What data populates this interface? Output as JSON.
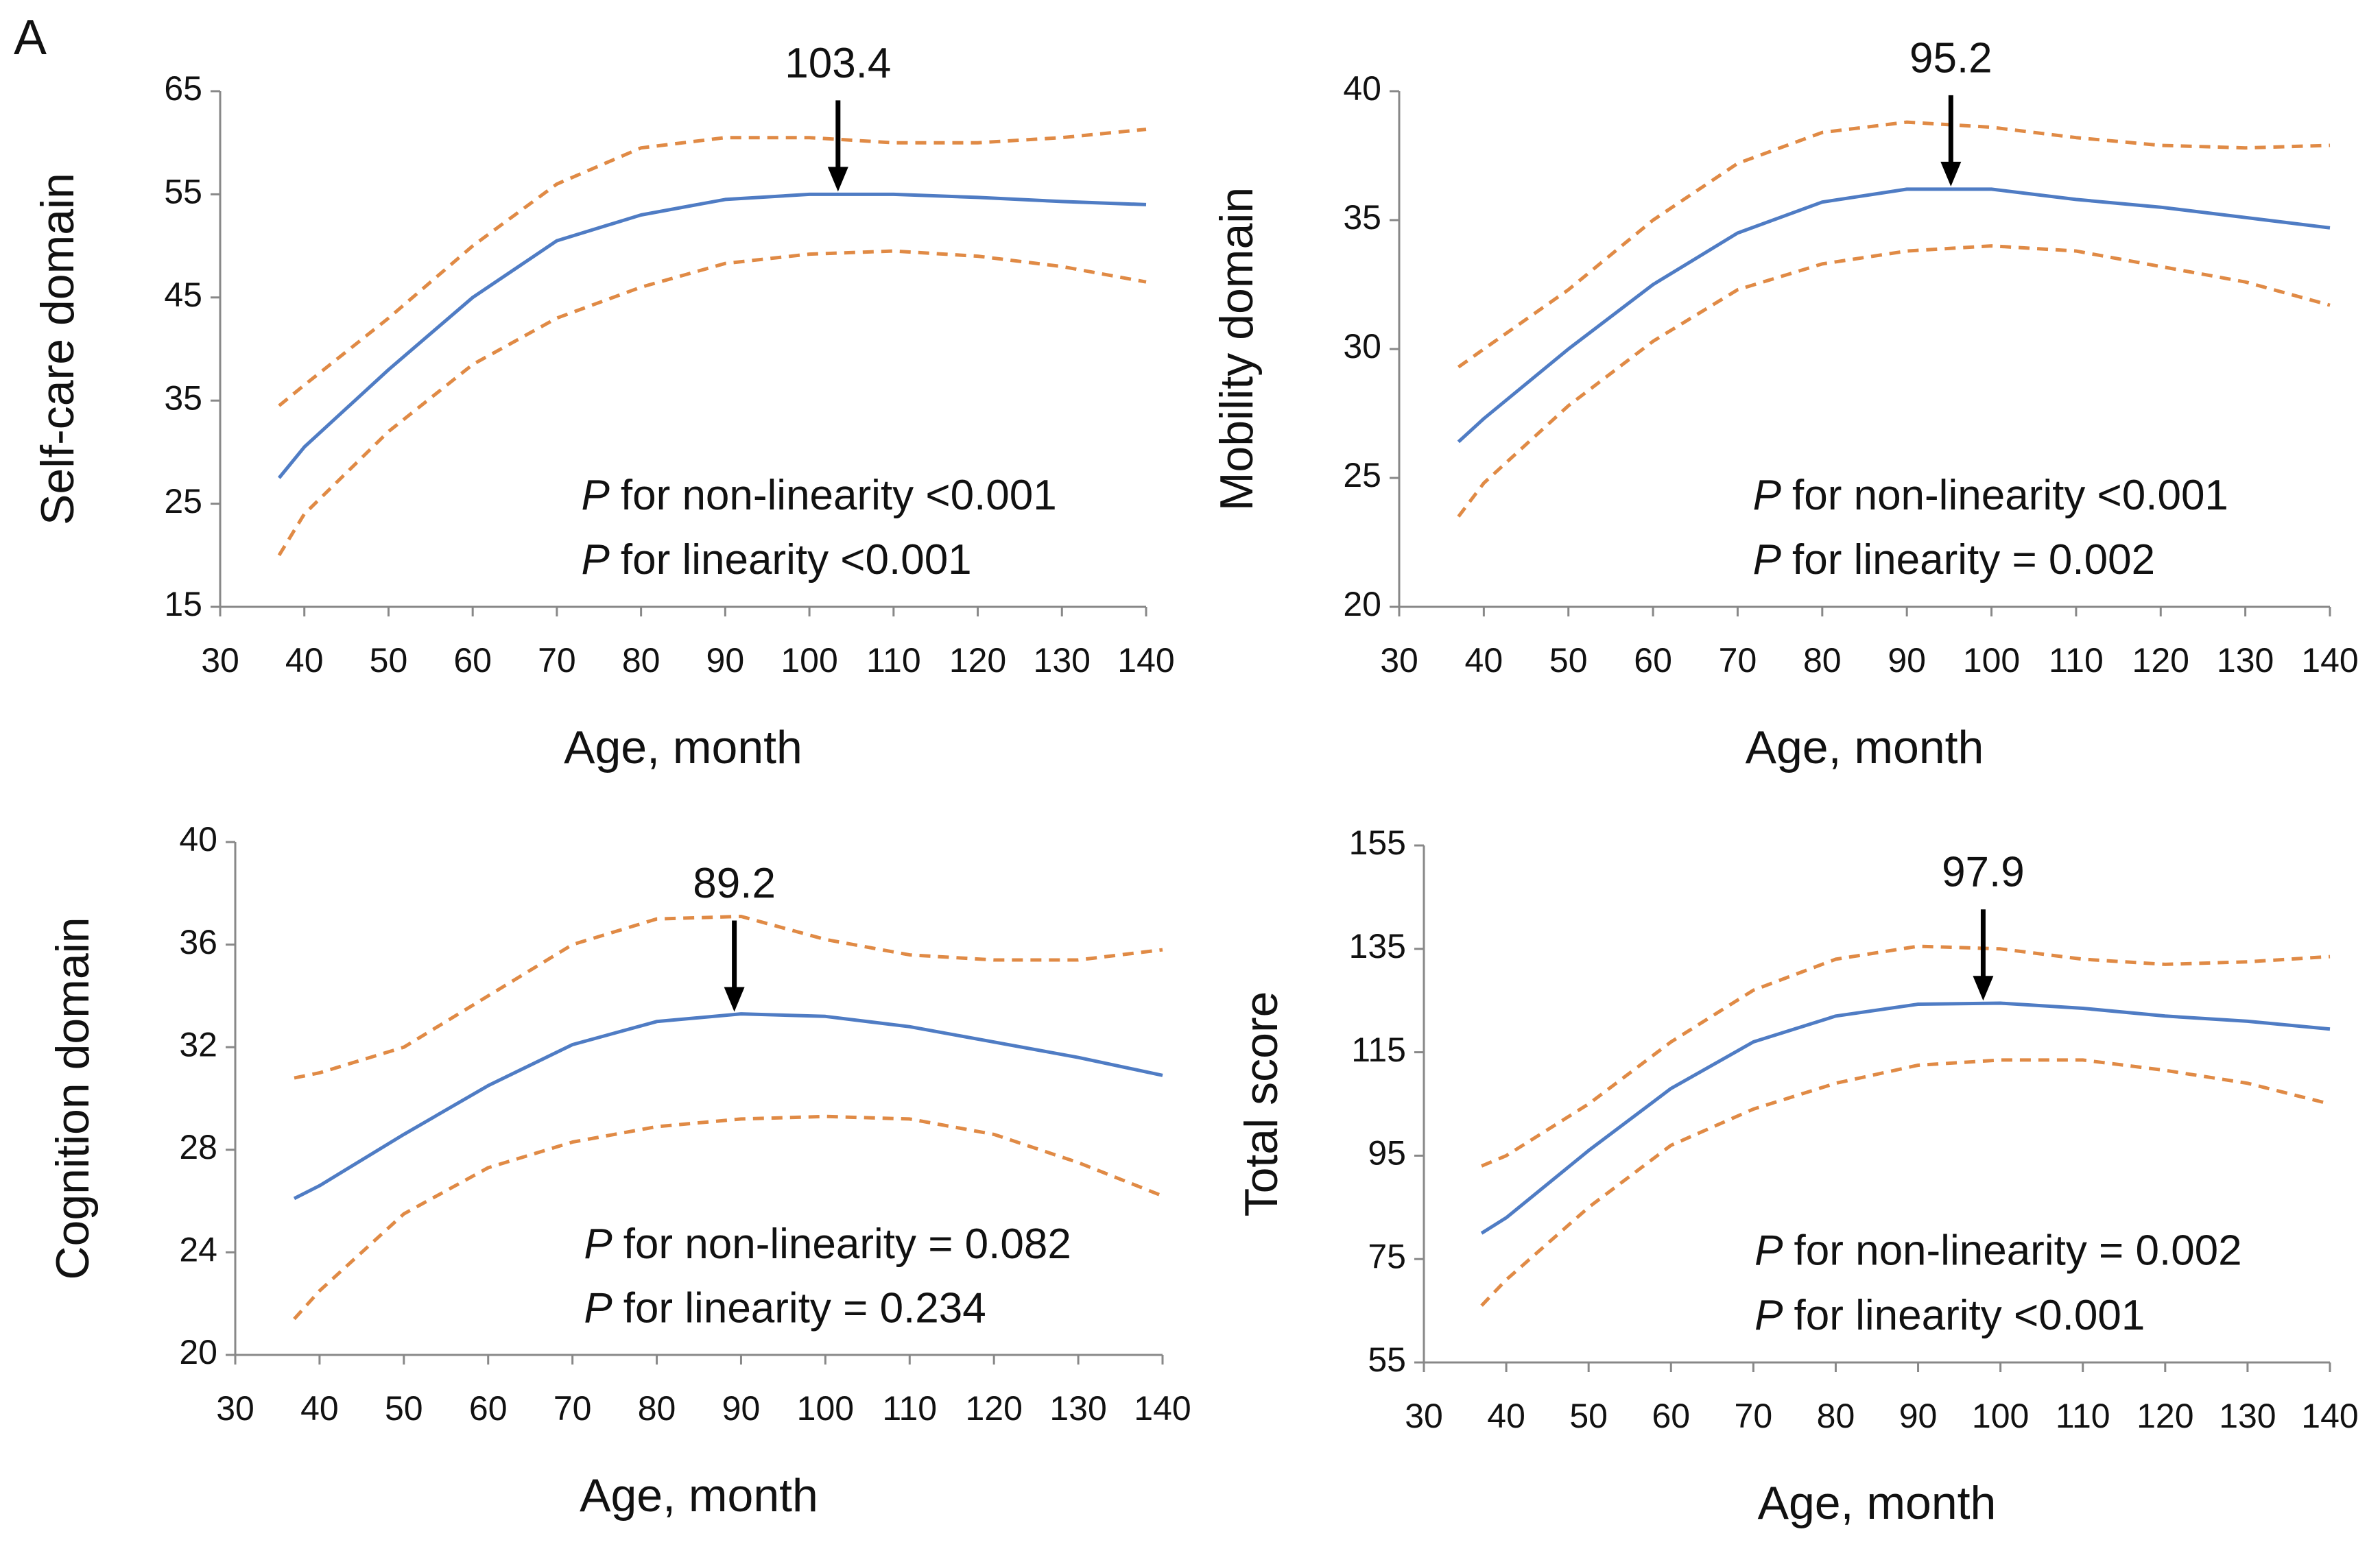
{
  "panel_label": "A",
  "chart_data": [
    {
      "type": "line",
      "y_label": "Self-care domain",
      "x_label": "Age, month",
      "x": [
        37,
        40,
        50,
        60,
        70,
        80,
        90,
        100,
        110,
        120,
        130,
        140
      ],
      "xlim": [
        30,
        140
      ],
      "xticks": [
        30,
        40,
        50,
        60,
        70,
        80,
        90,
        100,
        110,
        120,
        130,
        140
      ],
      "ylim": [
        15,
        65
      ],
      "yticks": [
        15,
        25,
        35,
        45,
        55,
        65
      ],
      "series": [
        {
          "color": "#4f7cc4",
          "dashed": false,
          "values": [
            27.5,
            30.5,
            38,
            45,
            50.5,
            53,
            54.5,
            55,
            55,
            54.7,
            54.3,
            54
          ]
        },
        {
          "color": "#e08a45",
          "dashed": true,
          "values": [
            34.5,
            36.5,
            43,
            50,
            56,
            59.5,
            60.5,
            60.5,
            60,
            60,
            60.5,
            61.3
          ]
        },
        {
          "color": "#e08a45",
          "dashed": true,
          "values": [
            20,
            24,
            32,
            38.5,
            43,
            46,
            48.3,
            49.2,
            49.5,
            49,
            48,
            46.5
          ]
        }
      ],
      "peak": {
        "x": 103.4
      },
      "annotations": [
        {
          "emphasis": "P",
          "text": "for non-linearity <0.001"
        },
        {
          "emphasis": "P",
          "text": "for linearity <0.001"
        }
      ]
    },
    {
      "type": "line",
      "y_label": "Mobility domain",
      "x_label": "Age, month",
      "x": [
        37,
        40,
        50,
        60,
        70,
        80,
        90,
        100,
        110,
        120,
        130,
        140
      ],
      "xlim": [
        30,
        140
      ],
      "xticks": [
        30,
        40,
        50,
        60,
        70,
        80,
        90,
        100,
        110,
        120,
        130,
        140
      ],
      "ylim": [
        20,
        40
      ],
      "yticks": [
        20,
        25,
        30,
        35,
        40
      ],
      "series": [
        {
          "color": "#4f7cc4",
          "dashed": false,
          "values": [
            26.4,
            27.3,
            30,
            32.5,
            34.5,
            35.7,
            36.2,
            36.2,
            35.8,
            35.5,
            35.1,
            34.7
          ]
        },
        {
          "color": "#e08a45",
          "dashed": true,
          "values": [
            29.3,
            30,
            32.3,
            35,
            37.2,
            38.4,
            38.8,
            38.6,
            38.2,
            37.9,
            37.8,
            37.9
          ]
        },
        {
          "color": "#e08a45",
          "dashed": true,
          "values": [
            23.5,
            24.8,
            27.8,
            30.3,
            32.3,
            33.3,
            33.8,
            34,
            33.8,
            33.2,
            32.6,
            31.7
          ]
        }
      ],
      "peak": {
        "x": 95.2
      },
      "annotations": [
        {
          "emphasis": "P",
          "text": "for non-linearity <0.001"
        },
        {
          "emphasis": "P",
          "text": "for linearity = 0.002"
        }
      ]
    },
    {
      "type": "line",
      "y_label": "Cognition domain",
      "x_label": "Age, month",
      "x": [
        37,
        40,
        50,
        60,
        70,
        80,
        90,
        100,
        110,
        120,
        130,
        140
      ],
      "xlim": [
        30,
        140
      ],
      "xticks": [
        30,
        40,
        50,
        60,
        70,
        80,
        90,
        100,
        110,
        120,
        130,
        140
      ],
      "ylim": [
        20,
        40
      ],
      "yticks": [
        20,
        24,
        28,
        32,
        36,
        40
      ],
      "series": [
        {
          "color": "#4f7cc4",
          "dashed": false,
          "values": [
            26.1,
            26.6,
            28.6,
            30.5,
            32.1,
            33,
            33.3,
            33.2,
            32.8,
            32.2,
            31.6,
            30.9
          ]
        },
        {
          "color": "#e08a45",
          "dashed": true,
          "values": [
            30.8,
            31,
            32,
            34,
            36,
            37,
            37.1,
            36.2,
            35.6,
            35.4,
            35.4,
            35.8
          ]
        },
        {
          "color": "#e08a45",
          "dashed": true,
          "values": [
            21.4,
            22.5,
            25.5,
            27.3,
            28.3,
            28.9,
            29.2,
            29.3,
            29.2,
            28.6,
            27.5,
            26.2
          ]
        }
      ],
      "peak": {
        "x": 89.2
      },
      "annotations": [
        {
          "emphasis": "P",
          "text": "for non-linearity = 0.082"
        },
        {
          "emphasis": "P",
          "text": "for linearity = 0.234"
        }
      ]
    },
    {
      "type": "line",
      "y_label": "Total score",
      "x_label": "Age, month",
      "x": [
        37,
        40,
        50,
        60,
        70,
        80,
        90,
        100,
        110,
        120,
        130,
        140
      ],
      "xlim": [
        30,
        140
      ],
      "xticks": [
        30,
        40,
        50,
        60,
        70,
        80,
        90,
        100,
        110,
        120,
        130,
        140
      ],
      "ylim": [
        55,
        155
      ],
      "yticks": [
        55,
        75,
        95,
        115,
        135,
        155
      ],
      "series": [
        {
          "color": "#4f7cc4",
          "dashed": false,
          "values": [
            80,
            83,
            96,
            108,
            117,
            122,
            124.3,
            124.5,
            123.5,
            122,
            121,
            119.5
          ]
        },
        {
          "color": "#e08a45",
          "dashed": true,
          "values": [
            93,
            95,
            105,
            117,
            127,
            133,
            135.5,
            135,
            133,
            132,
            132.5,
            133.5
          ]
        },
        {
          "color": "#e08a45",
          "dashed": true,
          "values": [
            66,
            71,
            85,
            97,
            104,
            109,
            112.5,
            113.5,
            113.5,
            111.5,
            109,
            105
          ]
        }
      ],
      "peak": {
        "x": 97.9
      },
      "annotations": [
        {
          "emphasis": "P",
          "text": "for non-linearity = 0.002"
        },
        {
          "emphasis": "P",
          "text": "for linearity <0.001"
        }
      ]
    }
  ]
}
